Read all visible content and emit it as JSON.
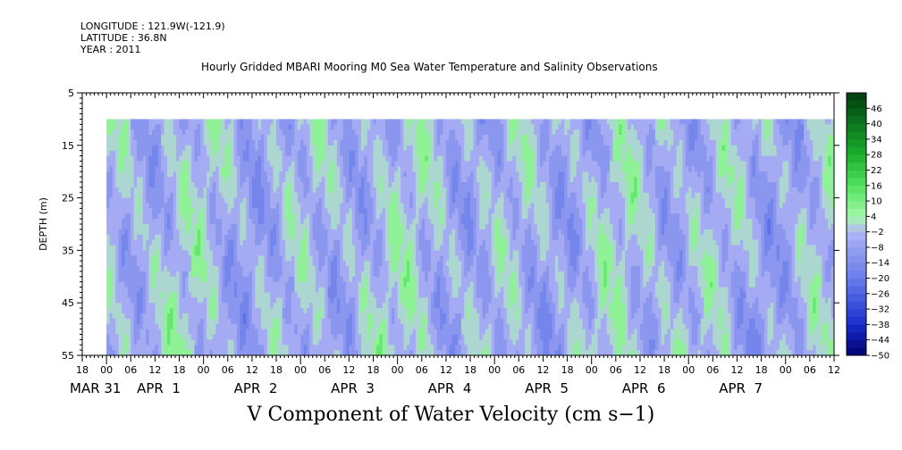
{
  "header": {
    "longitude": "LONGITUDE : 121.9W(-121.9)",
    "latitude": "LATITUDE : 36.8N",
    "year": "YEAR : 2011",
    "title": "Hourly Gridded MBARI Mooring M0 Sea Water Temperature and Salinity Observations"
  },
  "chart_data": {
    "type": "heatmap",
    "title": "Hourly Gridded MBARI Mooring M0 Sea Water Temperature and Salinity Observations",
    "variable_label": "V Component of Water Velocity (cm s−1)",
    "ylabel": "DEPTH (m)",
    "y_axis_inverted": true,
    "ylim": [
      55,
      5
    ],
    "y_ticks": [
      "5",
      "15",
      "25",
      "35",
      "45",
      "55"
    ],
    "data_depth_range": [
      10,
      55
    ],
    "x_range_hours": [
      -6,
      180
    ],
    "data_time_range_hours": [
      0,
      180
    ],
    "x_hour_ticks": [
      "18",
      "00",
      "06",
      "12",
      "18",
      "00",
      "06",
      "12",
      "18",
      "00",
      "06",
      "12",
      "18",
      "00",
      "06",
      "12",
      "18",
      "00",
      "06",
      "12",
      "18",
      "00",
      "06",
      "12",
      "18",
      "00",
      "06",
      "12",
      "18",
      "00",
      "06",
      "12"
    ],
    "x_date_labels": [
      "MAR 31",
      "APR  1",
      "APR  2",
      "APR  3",
      "APR  4",
      "APR  5",
      "APR  6",
      "APR  7"
    ],
    "colorbar": {
      "levels": [
        "46",
        "40",
        "34",
        "28",
        "22",
        "16",
        "10",
        "4",
        "−2",
        "−8",
        "−14",
        "−20",
        "−26",
        "−32",
        "−38",
        "−44",
        "−50"
      ],
      "min": -50,
      "max": 52,
      "step": 3
    },
    "grid": false
  }
}
